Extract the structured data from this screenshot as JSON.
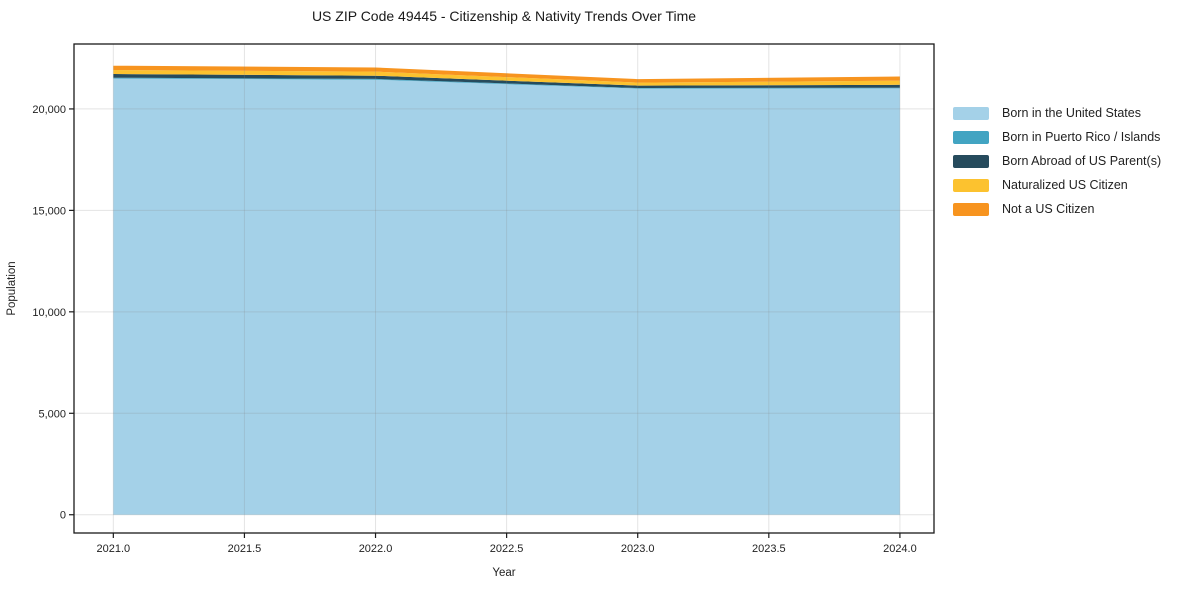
{
  "figure": {
    "background": "#ffffff",
    "frame_color": "#1a1a1a",
    "grid_color": "rgba(130,130,130,0.22)"
  },
  "chart_data": {
    "type": "area",
    "stacked": true,
    "title": "US ZIP Code 49445 - Citizenship & Nativity Trends Over Time",
    "xlabel": "Year",
    "ylabel": "Population",
    "x": [
      2021,
      2022,
      2023,
      2024
    ],
    "series": [
      {
        "name": "Born in the United States",
        "color": "#a4d1e8",
        "values": [
          21500,
          21440,
          21000,
          21010
        ]
      },
      {
        "name": "Born in Puerto Rico / Islands",
        "color": "#42a4c2",
        "values": [
          40,
          40,
          30,
          30
        ]
      },
      {
        "name": "Born Abroad of US Parent(s)",
        "color": "#264b5d",
        "values": [
          180,
          160,
          120,
          150
        ]
      },
      {
        "name": "Naturalized US Citizen",
        "color": "#fcc22f",
        "values": [
          200,
          200,
          150,
          200
        ]
      },
      {
        "name": "Not a US Citizen",
        "color": "#f7941f",
        "values": [
          210,
          200,
          170,
          210
        ]
      }
    ],
    "totals": [
      22130,
      22040,
      21470,
      21600
    ],
    "xlim": [
      2020.85,
      2024.13
    ],
    "ylim": [
      -900,
      23200
    ],
    "xticks": {
      "values": [
        2021,
        2021.5,
        2022,
        2022.5,
        2023,
        2023.5,
        2024
      ],
      "labels": [
        "2021.0",
        "2021.5",
        "2022.0",
        "2022.5",
        "2023.0",
        "2023.5",
        "2024.0"
      ]
    },
    "yticks": {
      "values": [
        0,
        5000,
        10000,
        15000,
        20000
      ],
      "labels": [
        "0",
        "5,000",
        "10,000",
        "15,000",
        "20,000"
      ]
    },
    "grid": true,
    "legend_position": "right of plot, no frame"
  }
}
